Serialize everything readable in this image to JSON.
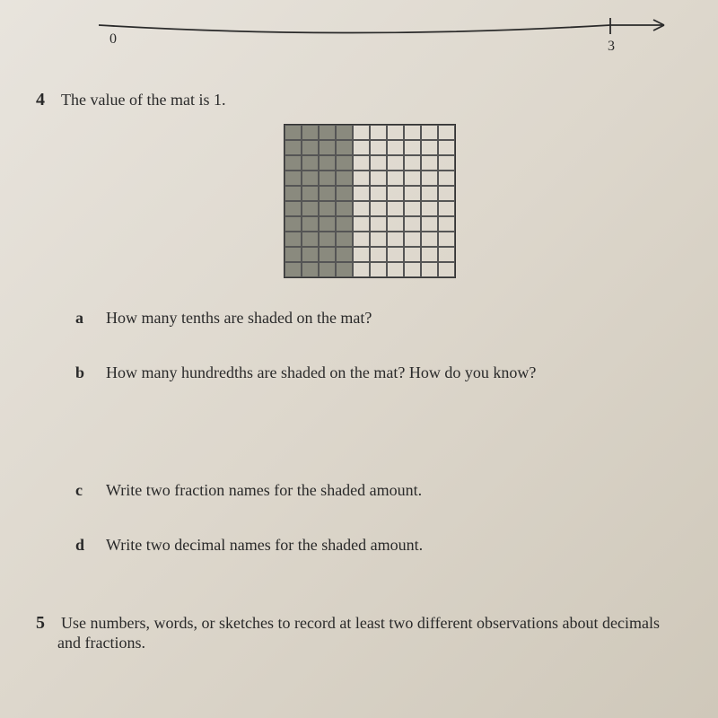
{
  "number_line": {
    "start_label": "0",
    "end_label": "3",
    "stroke_color": "#2a2a2a",
    "stroke_width": 1.8
  },
  "question4": {
    "number": "4",
    "prompt": "The value of the mat is 1.",
    "grid": {
      "rows": 10,
      "cols": 10,
      "shaded_cols": 4,
      "shaded_color": "#8a8a7e",
      "border_color": "#555"
    },
    "parts": {
      "a": {
        "letter": "a",
        "text": "How many tenths are shaded on the mat?"
      },
      "b": {
        "letter": "b",
        "text": "How many hundredths are shaded on the mat? How do you know?"
      },
      "c": {
        "letter": "c",
        "text": "Write two fraction names for the shaded amount."
      },
      "d": {
        "letter": "d",
        "text": "Write two decimal names for the shaded amount."
      }
    }
  },
  "question5": {
    "number": "5",
    "prompt": "Use numbers, words, or sketches to record at least two different observations about decimals and fractions."
  },
  "styling": {
    "body_bg": "#ddd7cc",
    "text_color": "#2a2a2a",
    "question_number_fontsize": 20,
    "body_fontsize": 18,
    "font_family": "Georgia, serif"
  }
}
